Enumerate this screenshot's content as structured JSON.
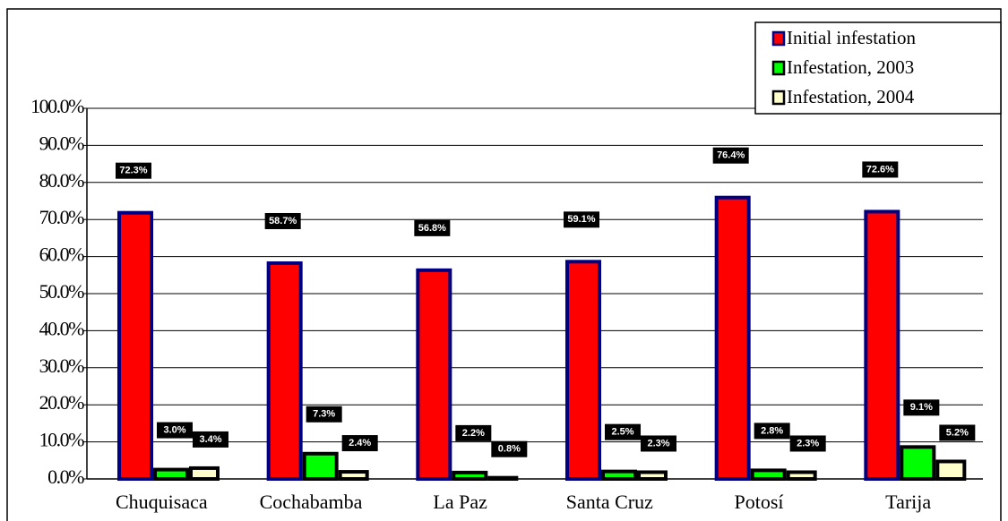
{
  "chart_data": {
    "type": "bar",
    "categories": [
      "Chuquisaca",
      "Cochabamba",
      "La Paz",
      "Santa Cruz",
      "Potosí",
      "Tarija"
    ],
    "series": [
      {
        "name": "Initial infestation",
        "color": "#ff0000",
        "border": "#000080",
        "values": [
          72.3,
          58.7,
          56.8,
          59.1,
          76.4,
          72.6
        ],
        "value_labels": [
          "72.3%",
          "58.7%",
          "56.8%",
          "59.1%",
          "76.4%",
          "72.6%"
        ]
      },
      {
        "name": "Infestation, 2003",
        "color": "#00ff00",
        "border": "#000000",
        "values": [
          3.0,
          7.3,
          2.2,
          2.5,
          2.8,
          9.1
        ],
        "value_labels": [
          "3.0%",
          "7.3%",
          "2.2%",
          "2.5%",
          "2.8%",
          "9.1%"
        ]
      },
      {
        "name": "Infestation, 2004",
        "color": "#ffffcc",
        "border": "#000000",
        "values": [
          3.4,
          2.4,
          0.8,
          2.3,
          2.3,
          5.2
        ],
        "value_labels": [
          "3.4%",
          "2.4%",
          "0.8%",
          "2.3%",
          "2.3%",
          "5.2%"
        ]
      }
    ],
    "ylim": [
      0,
      100
    ],
    "yticks": [
      {
        "value": 0,
        "label": "0.0%"
      },
      {
        "value": 10,
        "label": "10.0%"
      },
      {
        "value": 20,
        "label": "20.0%"
      },
      {
        "value": 30,
        "label": "30.0%"
      },
      {
        "value": 40,
        "label": "40.0%"
      },
      {
        "value": 50,
        "label": "50.0%"
      },
      {
        "value": 60,
        "label": "60.0%"
      },
      {
        "value": 70,
        "label": "70.0%"
      },
      {
        "value": 80,
        "label": "80.0%"
      },
      {
        "value": 90,
        "label": "90.0%"
      },
      {
        "value": 100,
        "label": "100.0%"
      }
    ],
    "grid": true,
    "legend": "top-right"
  }
}
